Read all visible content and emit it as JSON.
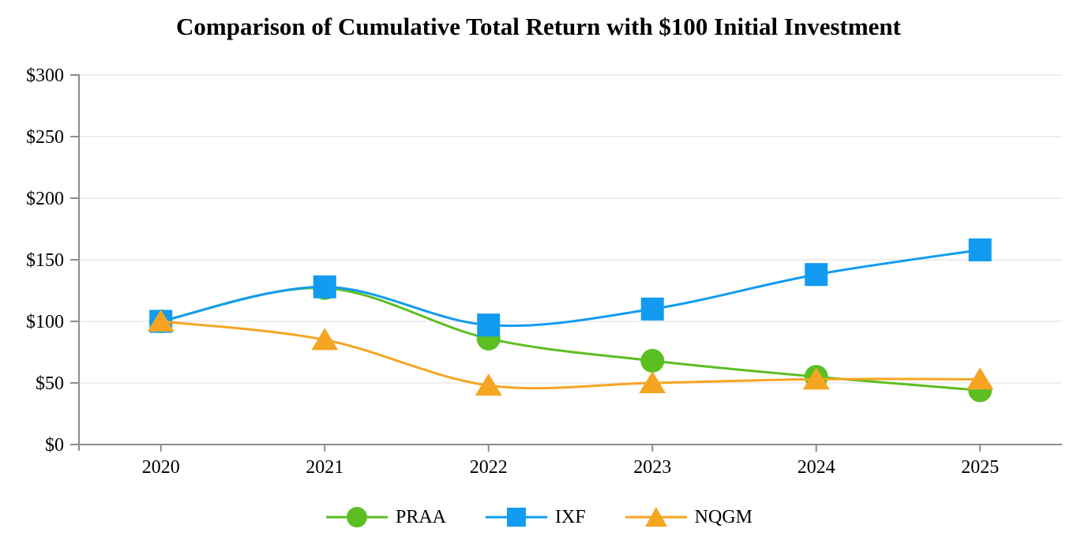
{
  "title": "Comparison of Cumulative Total Return with $100 Initial Investment",
  "chart_data": {
    "type": "line",
    "title": "Comparison of Cumulative Total Return with $100 Initial Investment",
    "categories": [
      "2020",
      "2021",
      "2022",
      "2023",
      "2024",
      "2025"
    ],
    "series": [
      {
        "name": "PRAA",
        "marker": "circle",
        "color": "#5bbf22",
        "values": [
          100,
          127,
          86,
          68,
          55,
          44
        ]
      },
      {
        "name": "IXF",
        "marker": "square",
        "color": "#129bf0",
        "values": [
          100,
          128,
          97,
          110,
          138,
          158
        ]
      },
      {
        "name": "NQGM",
        "marker": "triangle",
        "color": "#f5a522",
        "values": [
          100,
          85,
          48,
          50,
          53,
          53
        ]
      }
    ],
    "xlabel": "",
    "ylabel": "",
    "ylim": [
      0,
      300
    ],
    "ytick_step": 50,
    "ytick_labels": [
      "$0",
      "$50",
      "$100",
      "$150",
      "$200",
      "$250",
      "$300"
    ],
    "grid": true,
    "legend_position": "bottom",
    "line_smooth": true,
    "axis_color": "#8c8c8c",
    "grid_color": "#e8e8e8",
    "text_color": "#000000"
  }
}
